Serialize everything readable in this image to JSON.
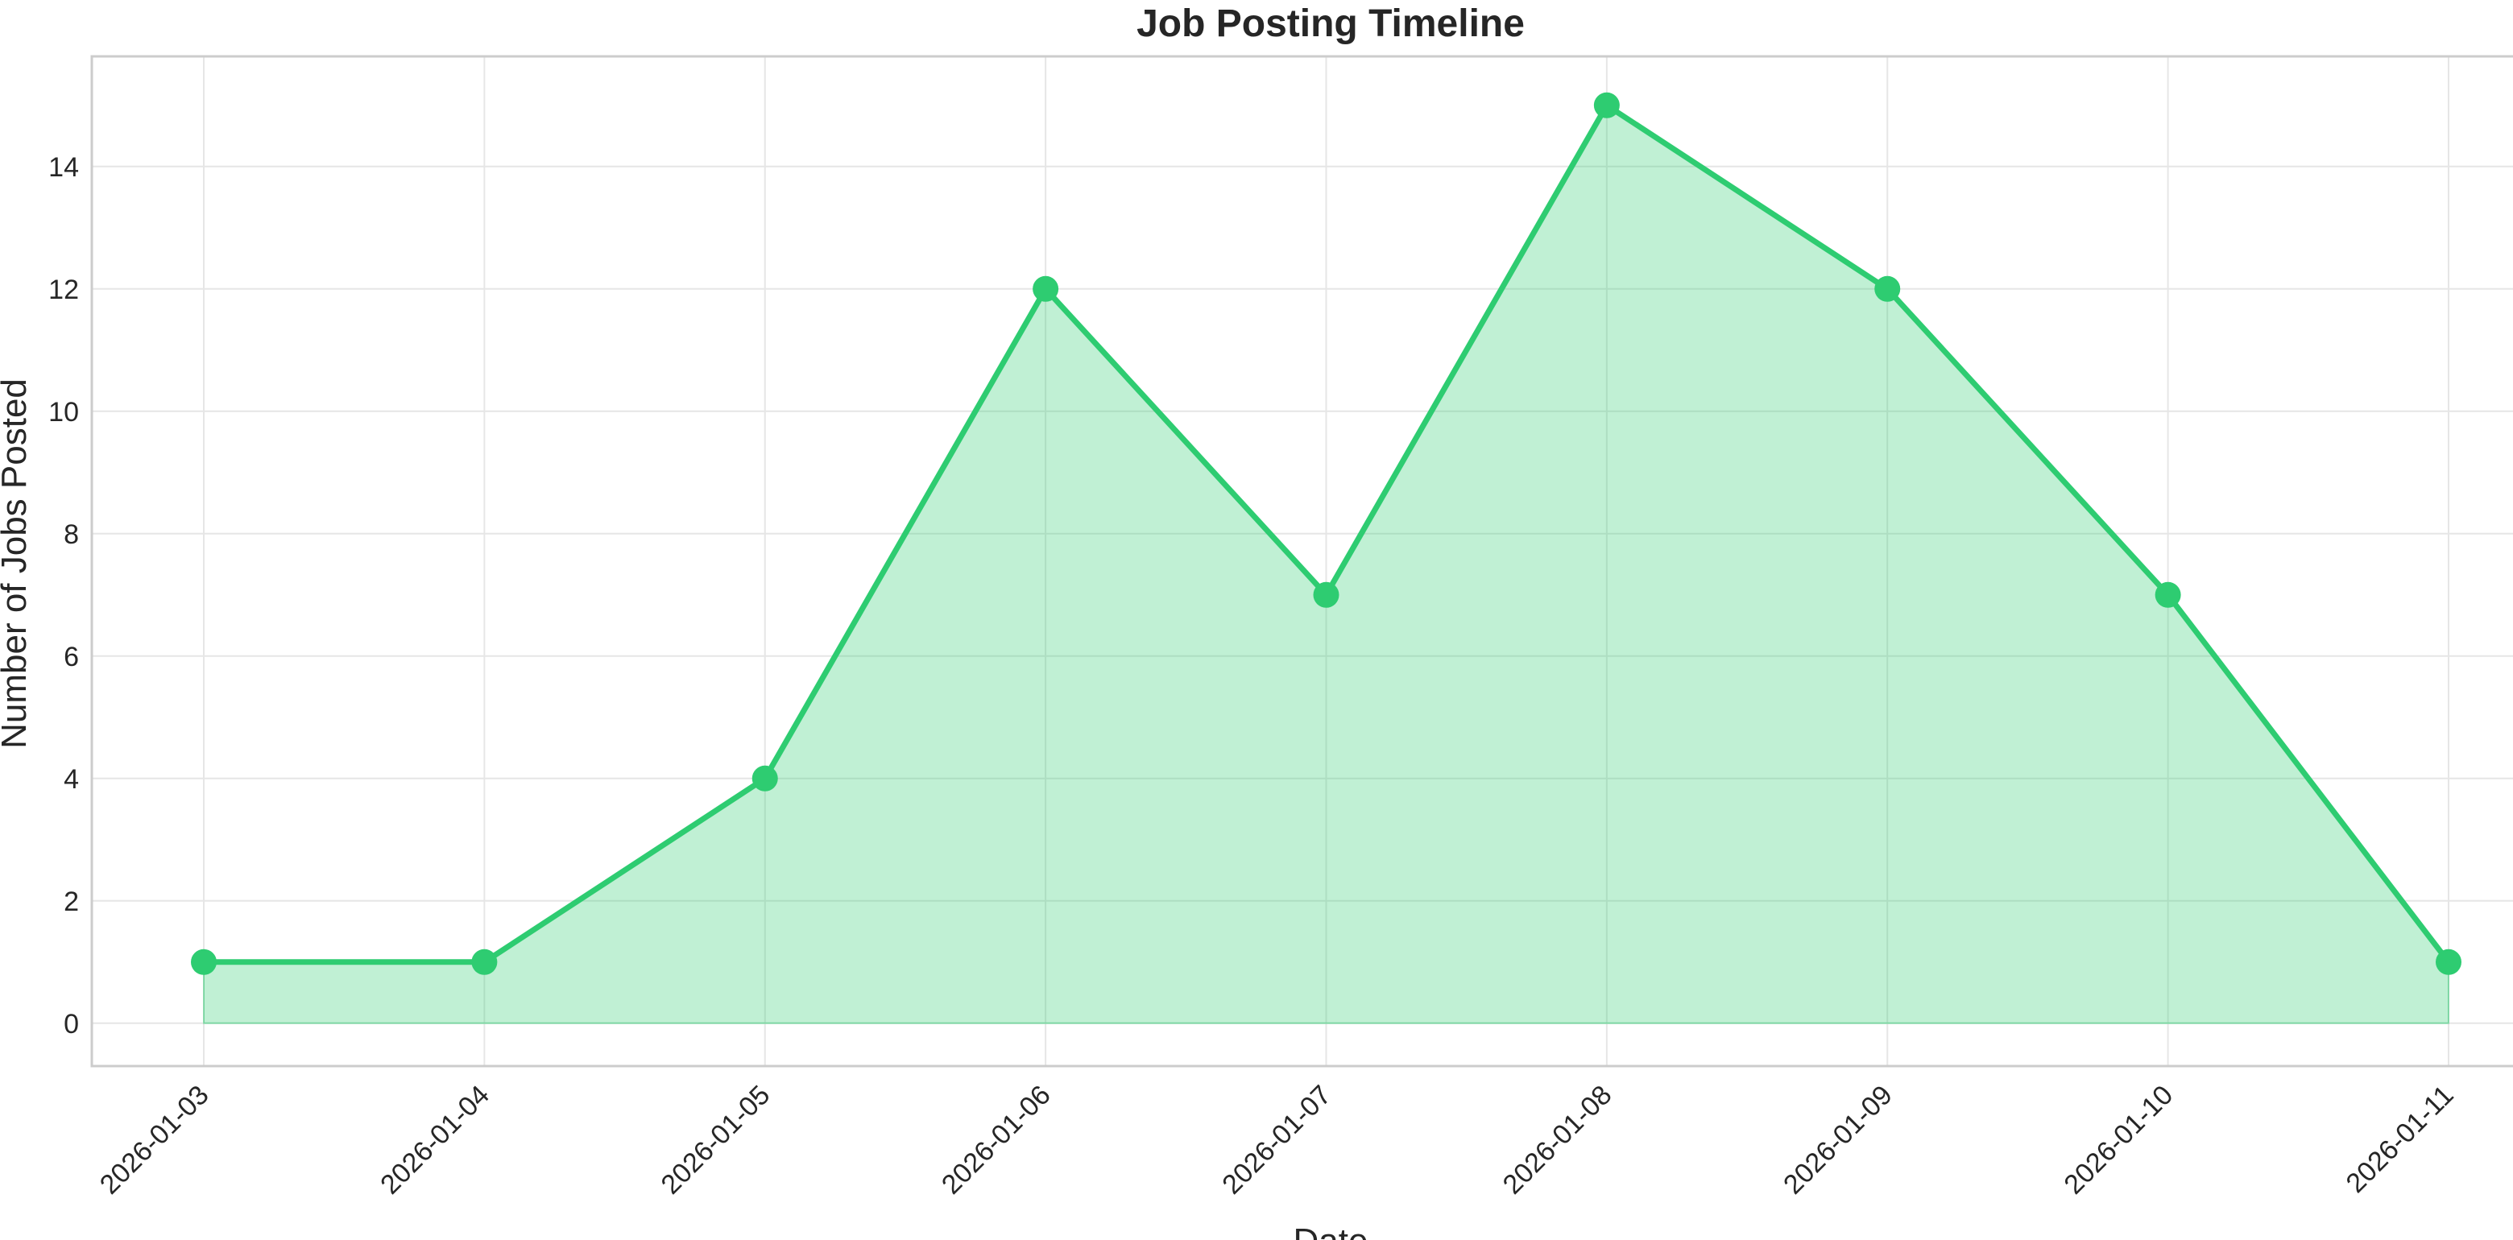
{
  "chart_data": {
    "type": "area",
    "title": "Job Posting Timeline",
    "xlabel": "Date",
    "ylabel": "Number of Jobs Posted",
    "x": [
      "2026-01-03",
      "2026-01-04",
      "2026-01-05",
      "2026-01-06",
      "2026-01-07",
      "2026-01-08",
      "2026-01-09",
      "2026-01-10",
      "2026-01-11"
    ],
    "series": [
      {
        "values": [
          1,
          1,
          4,
          12,
          7,
          15,
          12,
          7,
          1
        ],
        "color": "#2ecc71",
        "fill_color": "#2ecc71",
        "fill_opacity": 0.3,
        "markers": true
      }
    ],
    "yticks": [
      0,
      2,
      4,
      6,
      8,
      10,
      12,
      14
    ],
    "ylim": [
      -0.7,
      15.8
    ],
    "grid": true,
    "xtick_rotation": 45
  }
}
